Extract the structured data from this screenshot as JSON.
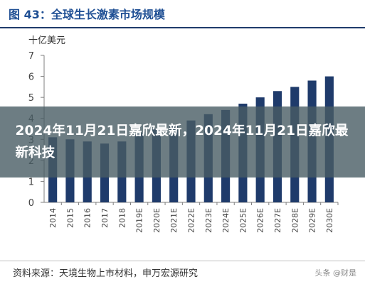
{
  "figure": {
    "title": "图 43：全球生长激素市场规模",
    "unit_label": "十亿美元"
  },
  "chart_data": {
    "type": "bar",
    "title": "图 43：全球生长激素市场规模",
    "ylabel": "十亿美元",
    "xlabel": "",
    "categories": [
      "2014",
      "2015",
      "2016",
      "2017",
      "2018",
      "2019E",
      "2020E",
      "2021E",
      "2022E",
      "2023E",
      "2024E",
      "2025E",
      "2026E",
      "2027E",
      "2028E",
      "2029E",
      "2030E"
    ],
    "values": [
      3.1,
      3.0,
      2.9,
      2.8,
      2.9,
      3.3,
      3.5,
      3.7,
      3.9,
      4.2,
      4.4,
      4.7,
      5.0,
      5.3,
      5.5,
      5.8,
      6.0
    ],
    "yticks": [
      0,
      1,
      2,
      3,
      4,
      5,
      6,
      7
    ],
    "ylim": [
      0,
      7
    ],
    "grid": false,
    "bar_color": "#1f3b6b",
    "axis_color": "#7f7f7f"
  },
  "source": {
    "text": "资料来源：天境生物上市材料，申万宏源研究",
    "watermark": "头条 @财是"
  },
  "overlay": {
    "text": "2024年11月21日嘉欣最新，2024年11月21日嘉欣最新科技"
  }
}
